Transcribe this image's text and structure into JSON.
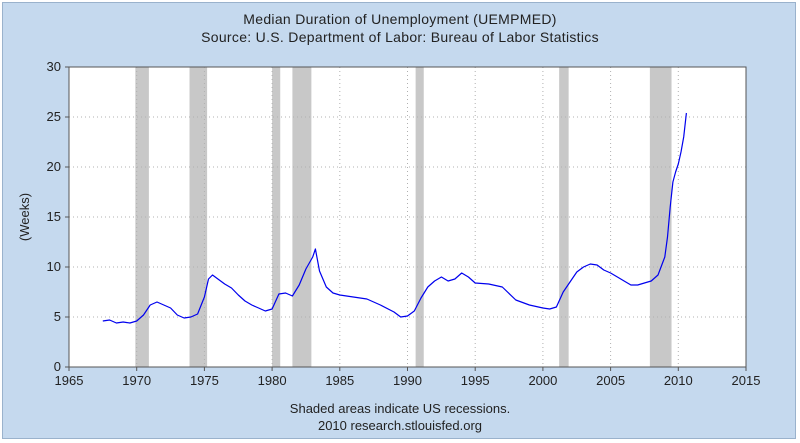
{
  "header": {
    "title": "Median Duration of Unemployment (UEMPMED)",
    "subtitle": "Source: U.S. Department of Labor: Bureau of Labor Statistics"
  },
  "footer": {
    "note": "Shaded areas indicate US recessions.",
    "credit": "2010 research.stlouisfed.org"
  },
  "colors": {
    "background": "#c5d9ee",
    "plot_area": "#ffffff",
    "line": "#0000ee",
    "recession": "#c8c8c8"
  },
  "chart_data": {
    "type": "line",
    "title": "Median Duration of Unemployment (UEMPMED)",
    "subtitle": "Source: U.S. Department of Labor: Bureau of Labor Statistics",
    "xlabel": "",
    "ylabel": "(Weeks)",
    "xlim": [
      1965,
      2015
    ],
    "ylim": [
      0,
      30
    ],
    "x_ticks": [
      1965,
      1970,
      1975,
      1980,
      1985,
      1990,
      1995,
      2000,
      2005,
      2010,
      2015
    ],
    "y_ticks": [
      0,
      5,
      10,
      15,
      20,
      25,
      30
    ],
    "grid": "dotted",
    "recessions": [
      [
        1969.9,
        1970.9
      ],
      [
        1973.9,
        1975.2
      ],
      [
        1980.0,
        1980.6
      ],
      [
        1981.5,
        1982.9
      ],
      [
        1990.6,
        1991.2
      ],
      [
        2001.2,
        2001.9
      ],
      [
        2007.9,
        2009.5
      ]
    ],
    "series": [
      {
        "x": [
          1967.5,
          1968.0,
          1968.5,
          1969.0,
          1969.5,
          1970.0,
          1970.5,
          1971.0,
          1971.5,
          1972.0,
          1972.5,
          1973.0,
          1973.5,
          1974.0,
          1974.5,
          1975.0,
          1975.3,
          1975.6,
          1976.0,
          1976.5,
          1977.0,
          1977.5,
          1978.0,
          1978.5,
          1979.0,
          1979.5,
          1980.0,
          1980.5,
          1981.0,
          1981.5,
          1982.0,
          1982.5,
          1983.0,
          1983.2,
          1983.5,
          1984.0,
          1984.5,
          1985.0,
          1986.0,
          1987.0,
          1988.0,
          1989.0,
          1989.5,
          1990.0,
          1990.5,
          1991.0,
          1991.5,
          1992.0,
          1992.5,
          1993.0,
          1993.5,
          1994.0,
          1994.5,
          1995.0,
          1996.0,
          1997.0,
          1998.0,
          1999.0,
          2000.0,
          2000.5,
          2001.0,
          2001.5,
          2002.0,
          2002.5,
          2003.0,
          2003.5,
          2004.0,
          2004.5,
          2005.0,
          2005.5,
          2006.0,
          2006.5,
          2007.0,
          2007.5,
          2008.0,
          2008.5,
          2009.0,
          2009.2,
          2009.4,
          2009.6,
          2009.8,
          2010.0,
          2010.2,
          2010.4,
          2010.6
        ],
        "values": [
          4.6,
          4.7,
          4.4,
          4.5,
          4.4,
          4.6,
          5.2,
          6.2,
          6.5,
          6.2,
          5.9,
          5.2,
          4.9,
          5.0,
          5.3,
          7.0,
          8.8,
          9.2,
          8.8,
          8.3,
          7.9,
          7.2,
          6.6,
          6.2,
          5.9,
          5.6,
          5.8,
          7.3,
          7.4,
          7.1,
          8.2,
          9.8,
          11.0,
          11.8,
          9.6,
          8.0,
          7.4,
          7.2,
          7.0,
          6.8,
          6.2,
          5.5,
          5.0,
          5.1,
          5.6,
          6.9,
          8.0,
          8.6,
          9.0,
          8.6,
          8.8,
          9.4,
          9.0,
          8.4,
          8.3,
          8.0,
          6.7,
          6.2,
          5.9,
          5.8,
          6.0,
          7.5,
          8.5,
          9.5,
          10.0,
          10.3,
          10.2,
          9.7,
          9.4,
          9.0,
          8.6,
          8.2,
          8.2,
          8.4,
          8.6,
          9.2,
          11.0,
          13.0,
          16.0,
          18.5,
          19.5,
          20.3,
          21.5,
          23.0,
          25.4
        ]
      }
    ]
  }
}
